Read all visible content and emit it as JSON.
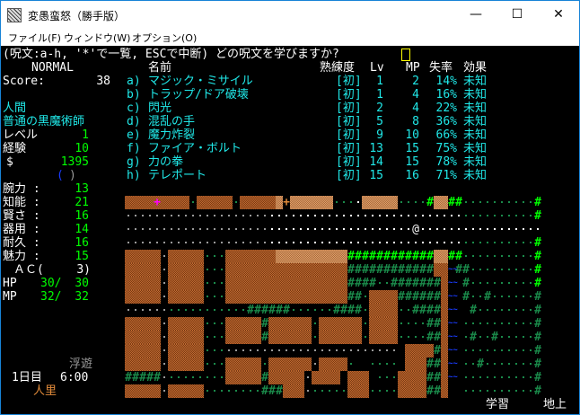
{
  "window": {
    "title": "変愚蛮怒（勝手版）",
    "minimize": "—",
    "maximize": "☐",
    "close": "✕"
  },
  "menu": [
    "ファイル(F)",
    "ウィンドウ(W)",
    "オプション(O)"
  ],
  "prompt": "(呪文:a-h, '*'で一覧, ESCで中断) どの呪文を学びますか?",
  "status": {
    "mode": "NORMAL",
    "score_label": "Score:",
    "score": "38",
    "race": "人間",
    "title": "普通の黒魔術師",
    "level_label": "レベル",
    "level": "1",
    "exp_label": "経験",
    "exp": "10",
    "gold_label": "$",
    "gold": "1395",
    "equip_open": "(",
    "equip_close": ")",
    "stats": [
      {
        "label": "腕力 :",
        "value": "13"
      },
      {
        "label": "知能 :",
        "value": "21"
      },
      {
        "label": "賢さ :",
        "value": "16"
      },
      {
        "label": "器用 :",
        "value": "14"
      },
      {
        "label": "耐久 :",
        "value": "16"
      },
      {
        "label": "魅力 :",
        "value": "15"
      }
    ],
    "ac_label": "ＡＣ(",
    "ac": "3)",
    "hp_label": "HP",
    "hp_cur": "30/",
    "hp_max": "30",
    "mp_label": "MP",
    "mp_cur": "32/",
    "mp_max": "32",
    "levitation": "浮遊",
    "day": "1日目",
    "time": "6:00",
    "location": "人里",
    "study": "学習",
    "depth": "地上"
  },
  "spell_headers": {
    "name": "名前",
    "skill": "熟練度",
    "lv": "Lv",
    "mp": "MP",
    "fail": "失率",
    "effect": "効果"
  },
  "spells": [
    {
      "key": "a)",
      "name": "マジック・ミサイル",
      "skill": "[初]",
      "lv": "1",
      "mp": "2",
      "fail": "14%",
      "effect": "未知"
    },
    {
      "key": "b)",
      "name": "トラップ/ドア破壊",
      "skill": "[初]",
      "lv": "1",
      "mp": "4",
      "fail": "16%",
      "effect": "未知"
    },
    {
      "key": "c)",
      "name": "閃光",
      "skill": "[初]",
      "lv": "2",
      "mp": "4",
      "fail": "22%",
      "effect": "未知"
    },
    {
      "key": "d)",
      "name": "混乱の手",
      "skill": "[初]",
      "lv": "5",
      "mp": "8",
      "fail": "36%",
      "effect": "未知"
    },
    {
      "key": "e)",
      "name": "魔力炸裂",
      "skill": "[初]",
      "lv": "9",
      "mp": "10",
      "fail": "66%",
      "effect": "未知"
    },
    {
      "key": "f)",
      "name": "ファイア・ボルト",
      "skill": "[初]",
      "lv": "13",
      "mp": "15",
      "fail": "75%",
      "effect": "未知"
    },
    {
      "key": "g)",
      "name": "力の拳",
      "skill": "[初]",
      "lv": "14",
      "mp": "15",
      "fail": "78%",
      "effect": "未知"
    },
    {
      "key": "h)",
      "name": "テレポート",
      "skill": "[初]",
      "lv": "15",
      "mp": "16",
      "fail": "71%",
      "effect": "未知"
    }
  ],
  "map": {
    "legend": {
      "B": "building",
      "L": "lit-building",
      ".": "floor",
      "w": "lit-floor",
      "g": "grass",
      "#": "tree",
      "H": "lit-tree",
      "~": "water",
      "@": "player",
      "P": "door",
      "D": "door"
    },
    "colors": {
      "building": "#a4521f",
      "lit_building": "#e0a06a",
      "tree": "#1a8a4a",
      "lit_tree": "#00ff00",
      "water": "#1a3cff",
      "player": "#ffffff",
      "door_magenta": "#ff00ff",
      "door_orange": "#e08a3a"
    },
    "rows": [
      "BBBBPBBBBgBBBBBgBBBBBLDLLLLLLgggwLLLLLggggHLLHHggggggggggH",
      "....................wwwwwwwwwwwwwwwwwwwwwwwwwwwggggggggggH",
      "....................wwwwwwwwwwwwwwwwwwww@wwwwwwwwwwwwwwwww",
      "....................wwwwwwwwwwwwwwwwwwwwwwwwwwwggggggggggH",
      "BBBBB.BBBBBgggBBBBBBBLLLLLLLLLLHHHHHHHHHHHHLLHHggggggggggH",
      "BBBBB.BBBBBgggBBBBBBBBBBBBBBBBB############BB~##gggggggggH",
      "BBBBB.BBBBBgggBBBBBBBBBBBBBBBBB####gg#######B~ #gggggggggH",
      "BBBBB.BBBBBgggBBBBBBBBBBBBBBBBB##gBBBB######B~ #gg#gggggg#",
      "......ggggggggggg######gggggg####gBBBBgg####B~  #gggggggg#",
      "BBBBB.BBBBBgggBBBBB#BBBBBBgBBBBBBgBBBBgggg##B~ gggggggggg#",
      "BBBBB.BBBBBgggBBBBB#BBBBBBgBBBBBBgBBBBgggg##B~ g#gg#ggggg#",
      "BBBBB.BBBBBggg........................ BBBB#B~ gggggggggg#",
      "BBBBB.BBBBBgggBBBBBgBBBBBB.BBBBg  gggg BBB##B~ gg#ggggggg#",
      "#####.ggggggggBBBBB#BBBBB.BBBB BBB gggBBBB##B~ gggggggggg#",
      "BBBBB.BBBBBgggggggg###BBB.gggggBBBggggBBBB##B  gggggggggg#"
    ]
  }
}
